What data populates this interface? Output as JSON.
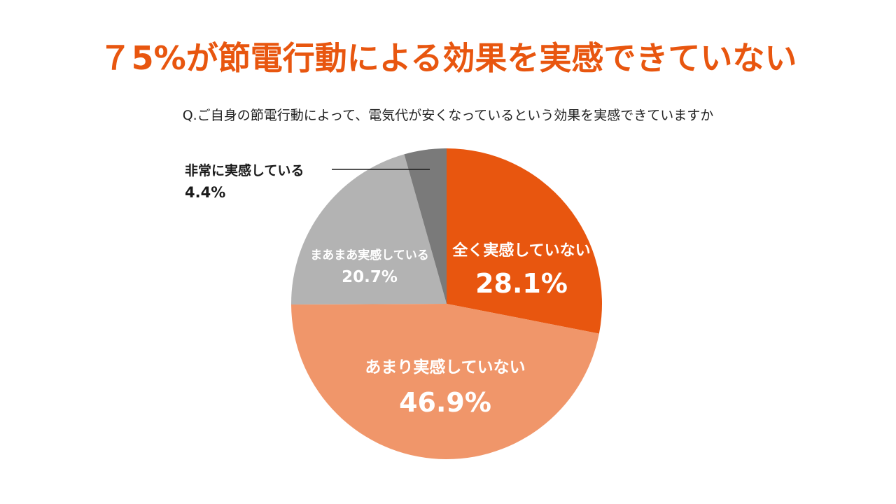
{
  "chart_data": {
    "type": "pie",
    "title": "７5%が節電行動による効果を実感できていない",
    "subtitle": "Q.ご自身の節電行動によって、電気代が安くなっているという効果を実感できていますか",
    "slices": [
      {
        "label": "全く実感していない",
        "value": 28.1,
        "value_label": "28.1%",
        "color": "#e8560f"
      },
      {
        "label": "あまり実感していない",
        "value": 46.9,
        "value_label": "46.9%",
        "color": "#f0966a"
      },
      {
        "label": "まあまあ実感している",
        "value": 20.7,
        "value_label": "20.7%",
        "color": "#b3b3b3"
      },
      {
        "label": "非常に実感している",
        "value": 4.4,
        "value_label": "4.4%",
        "color": "#7a7a7a"
      }
    ],
    "start_angle": "12 o'clock",
    "direction": "clockwise"
  }
}
